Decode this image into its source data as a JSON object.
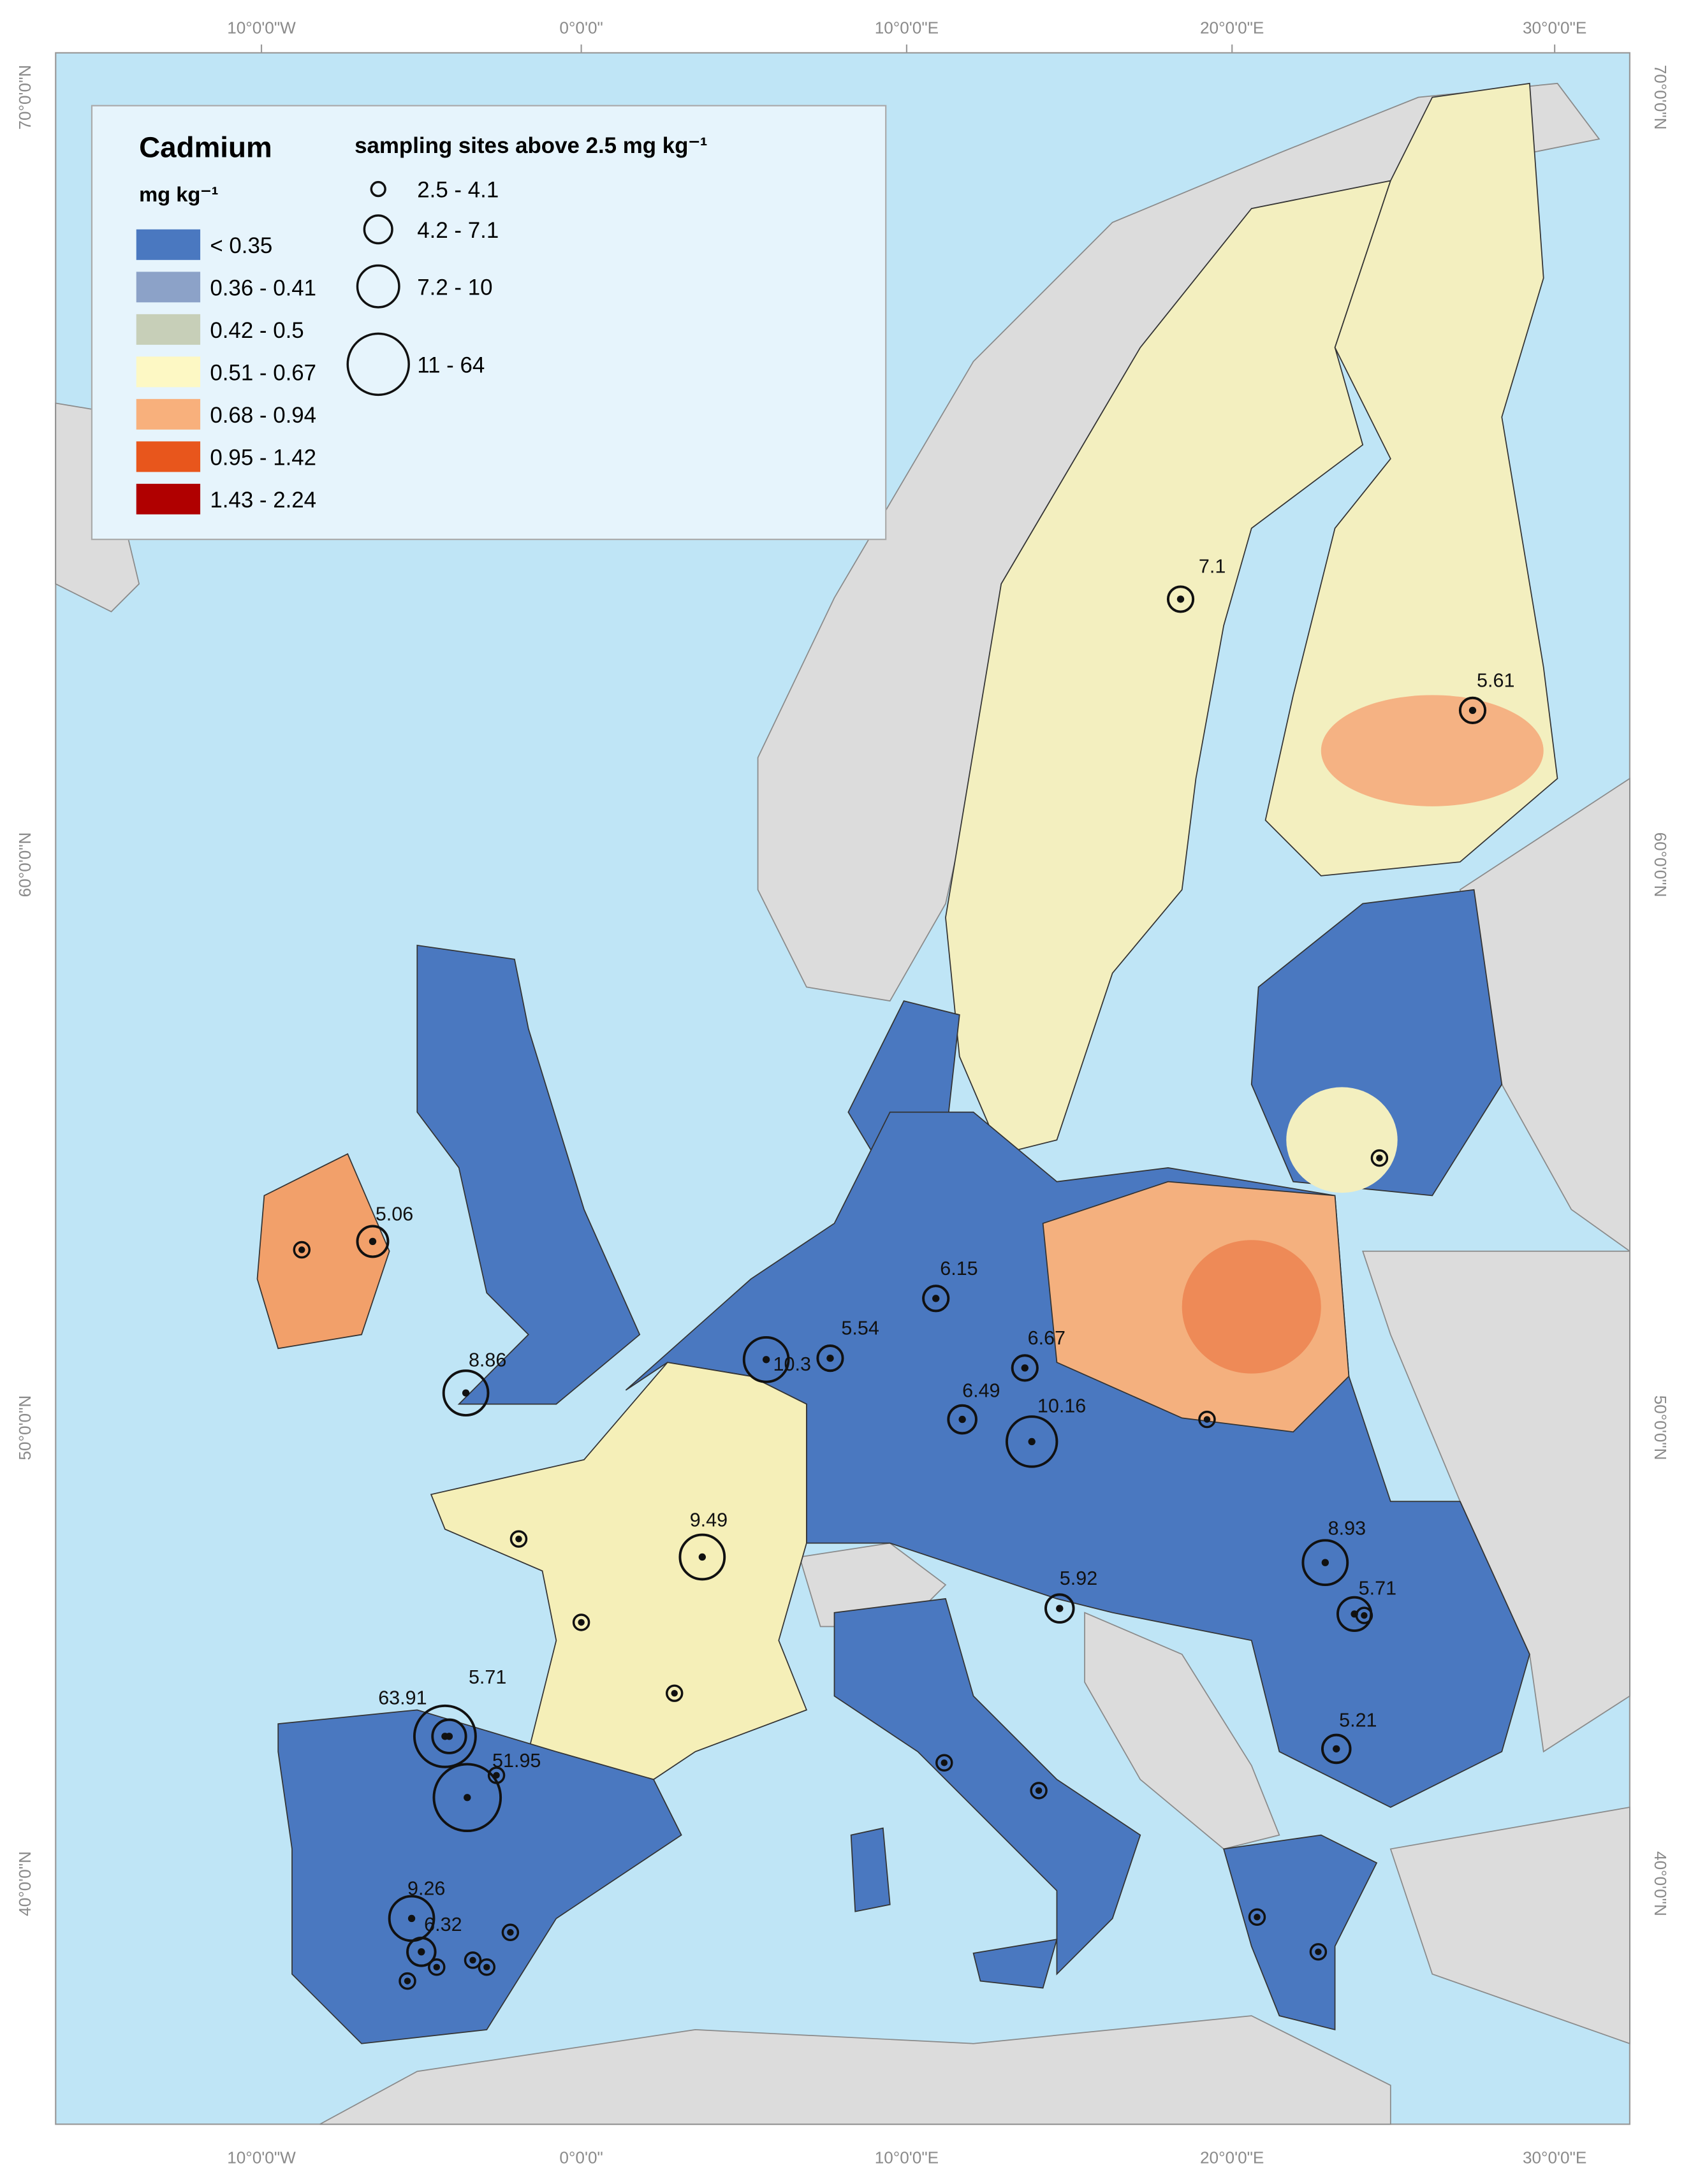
{
  "graticule": {
    "lon": [
      "10°0'0\"W",
      "0°0'0\"",
      "10°0'0\"E",
      "20°0'0\"E",
      "30°0'0\"E"
    ],
    "lat": [
      "70°0'0\"N",
      "60°0'0\"N",
      "50°0'0\"N",
      "40°0'0\"N"
    ]
  },
  "legend": {
    "title": "Cadmium",
    "unit": "mg kg⁻¹",
    "classes": [
      {
        "label": "< 0.35",
        "color": "#4a78c0"
      },
      {
        "label": "0.36 - 0.41",
        "color": "#8ca2c8"
      },
      {
        "label": "0.42 - 0.5",
        "color": "#c7cfb8"
      },
      {
        "label": "0.51 - 0.67",
        "color": "#fdf8c4"
      },
      {
        "label": "0.68 - 0.94",
        "color": "#f8b07c"
      },
      {
        "label": "0.95 - 1.42",
        "color": "#e8561c"
      },
      {
        "label": "1.43 - 2.24",
        "color": "#b00000"
      }
    ],
    "sites_title": "sampling sites above 2.5 mg kg⁻¹",
    "size_classes": [
      "2.5 - 4.1",
      "4.2 - 7.1",
      "7.2 - 10",
      "11 - 64"
    ]
  },
  "sites": {
    "labels": [
      "7.1",
      "5.61",
      "5.06",
      "6.15",
      "5.54",
      "8.86",
      "10.3",
      "6.67",
      "6.49",
      "10.16",
      "9.49",
      "8.93",
      "5.71",
      "5.92",
      "63.91",
      "5.71",
      "51.95",
      "5.21",
      "9.26",
      "6.32"
    ]
  }
}
